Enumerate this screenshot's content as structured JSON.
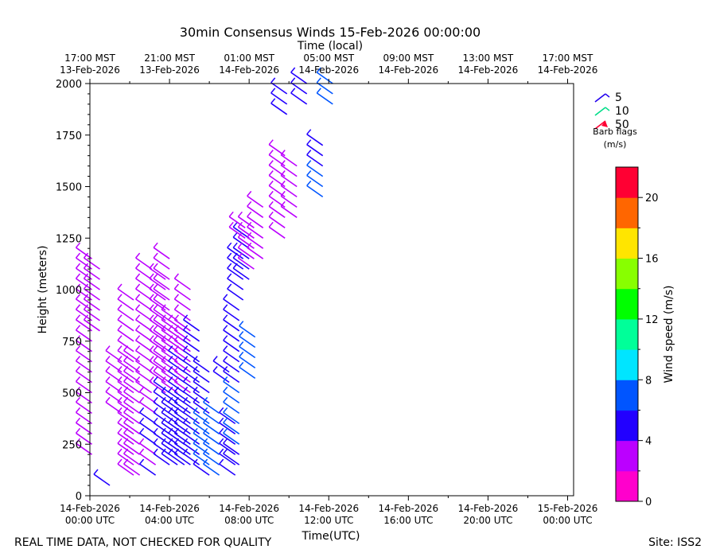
{
  "chart_data": {
    "type": "scatter",
    "title": "30min Consensus Winds 15-Feb-2026 00:00:00",
    "top_axis_label": "Time (local)",
    "xlabel": "Time(UTC)",
    "ylabel": "Height (meters)",
    "ylim": [
      0,
      2000
    ],
    "xlim_hours": [
      0,
      24.3
    ],
    "y_ticks": [
      0,
      250,
      500,
      750,
      1000,
      1250,
      1500,
      1750,
      2000
    ],
    "bottom_ticks": [
      {
        "hour": 0,
        "line1": "14-Feb-2026",
        "line2": "00:00 UTC"
      },
      {
        "hour": 4,
        "line1": "14-Feb-2026",
        "line2": "04:00 UTC"
      },
      {
        "hour": 8,
        "line1": "14-Feb-2026",
        "line2": "08:00 UTC"
      },
      {
        "hour": 12,
        "line1": "14-Feb-2026",
        "line2": "12:00 UTC"
      },
      {
        "hour": 16,
        "line1": "14-Feb-2026",
        "line2": "16:00 UTC"
      },
      {
        "hour": 20,
        "line1": "14-Feb-2026",
        "line2": "20:00 UTC"
      },
      {
        "hour": 24,
        "line1": "15-Feb-2026",
        "line2": "00:00 UTC"
      }
    ],
    "top_ticks": [
      {
        "hour": 0,
        "line1": "17:00 MST",
        "line2": "13-Feb-2026"
      },
      {
        "hour": 4,
        "line1": "21:00 MST",
        "line2": "13-Feb-2026"
      },
      {
        "hour": 8,
        "line1": "01:00 MST",
        "line2": "14-Feb-2026"
      },
      {
        "hour": 12,
        "line1": "05:00 MST",
        "line2": "14-Feb-2026"
      },
      {
        "hour": 16,
        "line1": "09:00 MST",
        "line2": "14-Feb-2026"
      },
      {
        "hour": 20,
        "line1": "13:00 MST",
        "line2": "14-Feb-2026"
      },
      {
        "hour": 24,
        "line1": "17:00 MST",
        "line2": "14-Feb-2026"
      }
    ],
    "legend": {
      "entries": [
        {
          "label": "5",
          "color": "#2200ee"
        },
        {
          "label": "10",
          "color": "#00dd88"
        },
        {
          "label": "50",
          "color": "#ff0033"
        }
      ],
      "caption_line1": "Barb flags",
      "caption_line2": "(m/s)",
      "placement": "upper-right"
    },
    "colorbar": {
      "label": "Wind speed (m/s)",
      "range": [
        0,
        22
      ],
      "ticks": [
        0,
        4,
        8,
        12,
        16,
        20
      ],
      "colors": [
        "#ff00cc",
        "#bb00ff",
        "#2200ff",
        "#0055ff",
        "#00e5ff",
        "#00ff99",
        "#00ff00",
        "#88ff00",
        "#ffe500",
        "#ff6600",
        "#ff0033"
      ]
    },
    "series": [
      {
        "x": 0.1,
        "heights": [
          1150,
          1100,
          1050,
          1000,
          950,
          900,
          850,
          800,
          750,
          700,
          650,
          600,
          550,
          500,
          450,
          400,
          350,
          300,
          250,
          200
        ],
        "speeds": [
          3,
          3,
          3,
          3,
          3,
          3,
          3,
          3,
          3,
          3,
          2,
          3,
          3,
          3,
          3,
          3,
          3,
          3,
          3,
          3
        ]
      },
      {
        "x": 0.5,
        "heights": [
          1100,
          1050,
          1000,
          950,
          900,
          850,
          800
        ],
        "speeds": [
          3,
          3,
          3,
          3,
          3,
          3,
          3
        ]
      },
      {
        "x": 1.0,
        "heights": [
          50
        ],
        "speeds": [
          5
        ]
      },
      {
        "x": 1.6,
        "heights": [
          650,
          600,
          550,
          500,
          450,
          400
        ],
        "speeds": [
          3,
          2,
          3,
          3,
          3,
          3
        ]
      },
      {
        "x": 2.2,
        "heights": [
          950,
          900,
          850,
          800,
          750,
          700,
          650,
          600,
          550,
          500,
          450,
          400,
          350,
          300,
          250,
          200,
          150,
          100
        ],
        "speeds": [
          3,
          3,
          3,
          3,
          3,
          3,
          3,
          3,
          3,
          2,
          3,
          3,
          3,
          3,
          3,
          3,
          3,
          3
        ]
      },
      {
        "x": 2.5,
        "heights": [
          650,
          600,
          550,
          500,
          450,
          400,
          350,
          300,
          250,
          200,
          150,
          100
        ],
        "speeds": [
          3,
          3,
          3,
          3,
          3,
          3,
          3,
          3,
          3,
          3,
          3,
          3
        ]
      },
      {
        "x": 3.1,
        "heights": [
          1100,
          1050,
          1000,
          950,
          900,
          850,
          800,
          750,
          700,
          650,
          600,
          550,
          500
        ],
        "speeds": [
          3,
          3,
          3,
          3,
          3,
          3,
          3,
          3,
          3,
          3,
          3,
          3,
          3
        ]
      },
      {
        "x": 3.3,
        "heights": [
          450,
          400,
          350,
          300,
          250,
          200,
          150,
          100
        ],
        "speeds": [
          3,
          3,
          5,
          5,
          5,
          3,
          3,
          5
        ]
      },
      {
        "x": 3.8,
        "heights": [
          1050,
          1000,
          950,
          900,
          850,
          800,
          750,
          700,
          650,
          600,
          550,
          500
        ],
        "speeds": [
          3,
          3,
          3,
          3,
          3,
          3,
          3,
          3,
          3,
          3,
          3,
          3
        ]
      },
      {
        "x": 4.0,
        "heights": [
          1150,
          1100,
          1050,
          1000,
          950,
          900,
          850,
          800,
          750,
          700,
          650,
          600,
          550,
          500,
          450,
          400,
          350,
          300,
          250,
          200,
          150
        ],
        "speeds": [
          3,
          3,
          3,
          3,
          3,
          3,
          3,
          3,
          3,
          3,
          3,
          3,
          3,
          5,
          5,
          5,
          5,
          5,
          5,
          5,
          5
        ]
      },
      {
        "x": 4.4,
        "heights": [
          850,
          800,
          750,
          700,
          650,
          600,
          550,
          500,
          450,
          400,
          350,
          300,
          250,
          200,
          150
        ],
        "speeds": [
          3,
          3,
          3,
          3,
          3,
          3,
          3,
          3,
          5,
          5,
          5,
          5,
          5,
          5,
          5
        ]
      },
      {
        "x": 4.75,
        "heights": [
          800,
          750,
          700,
          650,
          600,
          550,
          500,
          450,
          400,
          350,
          300,
          250,
          200,
          150
        ],
        "speeds": [
          3,
          3,
          3,
          5,
          5,
          5,
          5,
          5,
          5,
          5,
          5,
          5,
          5,
          5
        ]
      },
      {
        "x": 5.05,
        "heights": [
          1000,
          950,
          900,
          850,
          800,
          750,
          700,
          650,
          600,
          550,
          500,
          450,
          400,
          350,
          300,
          250,
          200,
          150
        ],
        "speeds": [
          3,
          3,
          3,
          3,
          3,
          3,
          3,
          3,
          3,
          3,
          3,
          5,
          5,
          5,
          5,
          5,
          5,
          5
        ]
      },
      {
        "x": 5.5,
        "heights": [
          800,
          750,
          700,
          650,
          600,
          550,
          500,
          450,
          400,
          350,
          300,
          250,
          200,
          150
        ],
        "speeds": [
          5,
          5,
          5,
          5,
          5,
          5,
          5,
          5,
          5,
          5,
          5,
          5,
          5,
          5
        ]
      },
      {
        "x": 6.0,
        "heights": [
          600,
          550,
          500,
          450,
          400,
          350,
          300,
          250,
          200,
          150,
          100
        ],
        "speeds": [
          5,
          5,
          5,
          5,
          5,
          7,
          7,
          7,
          7,
          7,
          5
        ]
      },
      {
        "x": 6.5,
        "heights": [
          400,
          350,
          300,
          250,
          200,
          150,
          100
        ],
        "speeds": [
          7,
          7,
          7,
          7,
          7,
          7,
          7
        ]
      },
      {
        "x": 7.0,
        "heights": [
          600,
          550
        ],
        "speeds": [
          5,
          5
        ]
      },
      {
        "x": 7.3,
        "heights": [
          350,
          300,
          250,
          200,
          150,
          100
        ],
        "speeds": [
          5,
          5,
          5,
          5,
          5,
          5
        ]
      },
      {
        "x": 7.5,
        "heights": [
          900,
          850,
          800,
          750,
          700,
          650,
          600,
          550,
          500,
          450,
          400,
          350,
          300,
          250,
          200,
          150
        ],
        "speeds": [
          5,
          5,
          5,
          5,
          5,
          5,
          5,
          5,
          7,
          7,
          7,
          7,
          7,
          7,
          5,
          5
        ]
      },
      {
        "x": 7.7,
        "heights": [
          1150,
          1100,
          1050,
          1000,
          950
        ],
        "speeds": [
          5,
          5,
          5,
          5,
          5
        ]
      },
      {
        "x": 8.0,
        "heights": [
          1250,
          1200,
          1150,
          1100,
          1050
        ],
        "speeds": [
          5,
          5,
          5,
          5,
          5
        ]
      },
      {
        "x": 8.25,
        "heights": [
          1300,
          1250,
          1200,
          1150,
          1100
        ],
        "speeds": [
          3,
          3,
          3,
          3,
          3
        ]
      },
      {
        "x": 8.3,
        "heights": [
          770,
          720,
          670,
          620,
          570
        ],
        "speeds": [
          7,
          7,
          7,
          7,
          7
        ]
      },
      {
        "x": 8.7,
        "heights": [
          1400,
          1350,
          1300,
          1250,
          1200,
          1150
        ],
        "speeds": [
          3,
          3,
          3,
          3,
          3,
          3
        ]
      },
      {
        "x": 7.8,
        "heights": [
          1300,
          1250
        ],
        "speeds": [
          3,
          3
        ]
      },
      {
        "x": 9.8,
        "heights": [
          1650,
          1600,
          1550,
          1500,
          1450,
          1400,
          1350,
          1300,
          1250
        ],
        "speeds": [
          3,
          3,
          3,
          3,
          3,
          3,
          3,
          3,
          3
        ]
      },
      {
        "x": 10.4,
        "heights": [
          1600,
          1550,
          1500,
          1450,
          1400,
          1350
        ],
        "speeds": [
          3,
          3,
          3,
          3,
          3,
          3
        ]
      },
      {
        "x": 9.9,
        "heights": [
          1950,
          1900,
          1850
        ],
        "speeds": [
          5,
          5,
          5
        ]
      },
      {
        "x": 10.9,
        "heights": [
          2000,
          1950,
          1900
        ],
        "speeds": [
          5,
          5,
          5
        ]
      },
      {
        "x": 11.7,
        "heights": [
          1700,
          1650,
          1600,
          1550,
          1500,
          1450
        ],
        "speeds": [
          5,
          5,
          5,
          7,
          7,
          7
        ]
      },
      {
        "x": 12.2,
        "heights": [
          2000,
          1950,
          1900
        ],
        "speeds": [
          7,
          7,
          7
        ]
      }
    ]
  },
  "footer": {
    "left": "REAL TIME DATA, NOT CHECKED FOR QUALITY",
    "right": "Site: ISS2"
  }
}
